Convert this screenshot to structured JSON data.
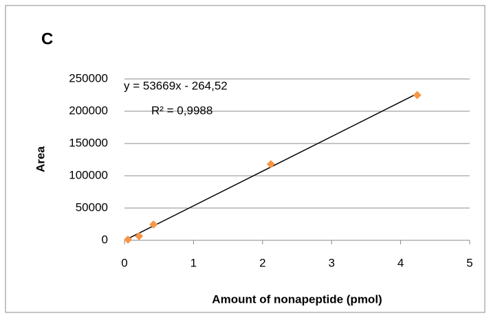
{
  "chart_data": {
    "type": "scatter",
    "title": "C",
    "x_label": "Amount of nonapeptide (pmol)",
    "y_label": "Area",
    "annotations": [
      "y = 53669x - 264,52",
      "R² = 0,9988"
    ],
    "series": [
      {
        "color": "#f79646",
        "x": [
          0.05,
          0.21,
          0.42,
          2.12,
          4.24
        ],
        "values": [
          1000,
          6400,
          24500,
          118000,
          225000
        ]
      }
    ],
    "trendline": {
      "color": "#000000",
      "x": [
        0.05,
        4.24
      ],
      "values": [
        2419,
        227292
      ]
    },
    "xlim": [
      0,
      5
    ],
    "xticks": [
      0,
      1,
      2,
      3,
      4,
      5
    ],
    "ylim": [
      0,
      250000
    ],
    "yticks": [
      0,
      50000,
      100000,
      150000,
      200000,
      250000
    ],
    "grid": true
  }
}
